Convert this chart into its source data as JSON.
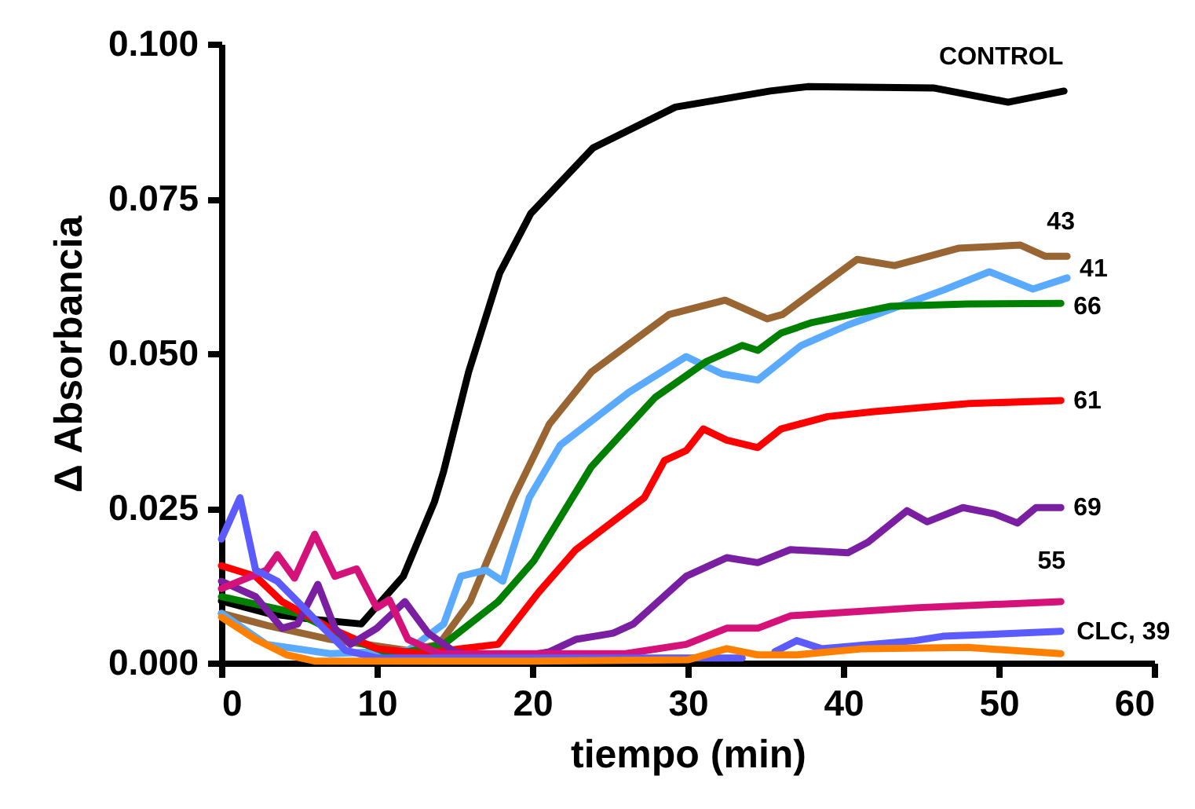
{
  "chart_data": {
    "type": "line",
    "xlabel": "tiempo (min)",
    "ylabel": "Δ Absorbancia",
    "xlim": [
      0,
      60
    ],
    "xticks": [
      0,
      10,
      20,
      30,
      40,
      50,
      60
    ],
    "ylim": [
      0,
      0.1
    ],
    "yticks": [
      {
        "value": 0,
        "label": "0.000"
      },
      {
        "value": 0.025,
        "label": "0.025"
      },
      {
        "value": 0.05,
        "label": "0.050"
      },
      {
        "value": 0.075,
        "label": "0.075"
      },
      {
        "value": 0.1,
        "label": "0.100"
      }
    ],
    "grid": false,
    "marker": "none",
    "line_style": "solid",
    "series": [
      {
        "name": "CONTROL",
        "color": "#000000",
        "x": [
          0,
          3,
          6,
          9,
          11.7,
          13.7,
          14.3,
          15.9,
          17.9,
          19.9,
          23.9,
          29.2,
          35.3,
          37.7,
          45.8,
          50.6,
          54.2
        ],
        "values": [
          0.01,
          0.008,
          0.007,
          0.0063,
          0.014,
          0.026,
          0.031,
          0.047,
          0.063,
          0.0726,
          0.0832,
          0.0898,
          0.0924,
          0.0931,
          0.0929,
          0.0906,
          0.0924
        ]
      },
      {
        "name": "43",
        "color": "#996633",
        "x": [
          0,
          3,
          7,
          12,
          14,
          16,
          18.8,
          21.1,
          23.8,
          28.8,
          32.4,
          35.1,
          36.1,
          40.9,
          43.3,
          47.4,
          51.4,
          53,
          54.4
        ],
        "values": [
          0.008,
          0.006,
          0.0038,
          0.002,
          0.003,
          0.0099,
          0.0267,
          0.0386,
          0.047,
          0.0563,
          0.0586,
          0.0556,
          0.0563,
          0.0652,
          0.0642,
          0.067,
          0.0675,
          0.0657,
          0.0657
        ]
      },
      {
        "name": "41",
        "color": "#5aaaff",
        "x": [
          0,
          2.9,
          7,
          12,
          14.3,
          15.4,
          17,
          18.1,
          19.8,
          21.8,
          26.2,
          29.9,
          32.2,
          34.5,
          37.3,
          40.3,
          46.4,
          49.4,
          52.2,
          54.4
        ],
        "values": [
          0.008,
          0.003,
          0.0015,
          0.002,
          0.0063,
          0.014,
          0.015,
          0.0132,
          0.0267,
          0.0352,
          0.0437,
          0.0495,
          0.0467,
          0.0457,
          0.0513,
          0.0546,
          0.0602,
          0.0632,
          0.0604,
          0.0622
        ]
      },
      {
        "name": "66",
        "color": "#008000",
        "x": [
          0,
          4.9,
          8.3,
          10,
          11,
          14.3,
          17.8,
          20.1,
          23.8,
          27.9,
          31.2,
          33.5,
          34.5,
          36,
          38,
          43,
          48,
          54
        ],
        "values": [
          0.0107,
          0.008,
          0.0038,
          0.0023,
          0.0013,
          0.003,
          0.0099,
          0.0165,
          0.0317,
          0.0429,
          0.0487,
          0.0513,
          0.0505,
          0.0533,
          0.055,
          0.0576,
          0.058,
          0.0581
        ]
      },
      {
        "name": "61",
        "color": "#ff0000",
        "x": [
          0,
          2.2,
          3.9,
          7,
          10,
          13,
          15.4,
          17.8,
          20.4,
          22.8,
          27.2,
          28.5,
          29.9,
          31,
          32.5,
          34.5,
          36,
          39,
          42,
          48.1,
          54
        ],
        "values": [
          0.0157,
          0.014,
          0.0099,
          0.0056,
          0.0023,
          0.0015,
          0.0023,
          0.003,
          0.0114,
          0.0183,
          0.0267,
          0.0327,
          0.0343,
          0.0378,
          0.036,
          0.0348,
          0.0378,
          0.0398,
          0.0406,
          0.0419,
          0.0424
        ]
      },
      {
        "name": "69",
        "color": "#7a1fa2",
        "x": [
          0,
          2.2,
          3.9,
          4.9,
          6.2,
          7.3,
          8.3,
          10,
          11.8,
          13.3,
          15,
          18,
          21.1,
          22.8,
          25.2,
          26.5,
          29.9,
          32.5,
          34.5,
          36.6,
          40.3,
          41.6,
          44.1,
          45.4,
          47.7,
          49.7,
          51.2,
          52.4,
          54
        ],
        "values": [
          0.0132,
          0.0107,
          0.0056,
          0.0063,
          0.0127,
          0.0056,
          0.003,
          0.0056,
          0.0099,
          0.0048,
          0.0018,
          0.0005,
          0.0018,
          0.0038,
          0.0048,
          0.0063,
          0.014,
          0.017,
          0.0162,
          0.0183,
          0.0178,
          0.0195,
          0.0246,
          0.0228,
          0.0251,
          0.0241,
          0.0226,
          0.0251,
          0.0251
        ]
      },
      {
        "name": "55",
        "color": "#d4127a",
        "x": [
          0,
          2.9,
          3.6,
          4.7,
          6,
          7.3,
          8.7,
          10,
          10.8,
          12,
          14,
          20,
          26,
          29.9,
          32.5,
          34.5,
          36.6,
          39.6,
          44.6,
          54
        ],
        "values": [
          0.012,
          0.015,
          0.0175,
          0.0137,
          0.0208,
          0.014,
          0.0152,
          0.0089,
          0.0102,
          0.0038,
          0.0015,
          0.0015,
          0.0015,
          0.003,
          0.0056,
          0.0056,
          0.0076,
          0.0081,
          0.0089,
          0.0099
        ]
      },
      {
        "name": "CLC, 39",
        "color": "#5b5bff",
        "x": [
          0,
          1.2,
          2.2,
          3.6,
          4.9,
          6.3,
          8,
          10,
          20,
          33.5,
          34.5,
          35.6,
          37,
          38.6,
          44.6,
          46.4,
          54
        ],
        "values": [
          0.02,
          0.0267,
          0.015,
          0.0132,
          0.0099,
          0.0063,
          0.002,
          0.0008,
          0.0008,
          0.0008,
          null,
          0.0018,
          0.0036,
          0.0023,
          0.0036,
          0.0043,
          0.0051
        ]
      },
      {
        "color": "#ff8000",
        "x": [
          0,
          2.2,
          4.2,
          6,
          20,
          30,
          32.5,
          34.5,
          37,
          41.3,
          48,
          54
        ],
        "values": [
          0.0074,
          0.0038,
          0.0013,
          0.0003,
          0.0003,
          0.0005,
          0.0023,
          0.0013,
          0.0013,
          0.0023,
          0.0025,
          0.0015
        ]
      }
    ]
  }
}
